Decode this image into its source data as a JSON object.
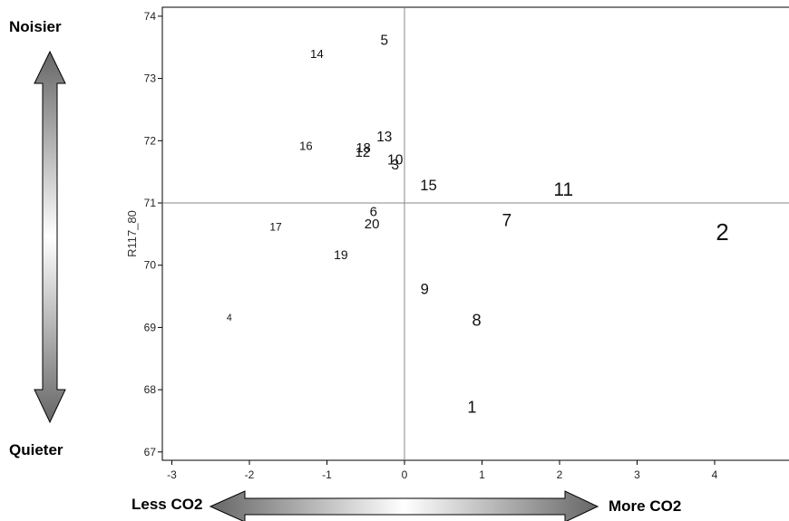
{
  "annotations": {
    "top_label": "Noisier",
    "bottom_label": "Quieter",
    "left_label": "Less CO2",
    "right_label": "More CO2"
  },
  "chart_data": {
    "type": "scatter",
    "title": "",
    "xlabel": "",
    "ylabel": "R117_80",
    "xlim": [
      -3,
      5
    ],
    "ylim": [
      67,
      74
    ],
    "x_ticks": [
      -3,
      -2,
      -1,
      0,
      1,
      2,
      3,
      4
    ],
    "y_ticks": [
      67,
      68,
      69,
      70,
      71,
      72,
      73,
      74
    ],
    "reference_lines": {
      "x": 0,
      "y": 71
    },
    "points": [
      {
        "label": "1",
        "x": 0.87,
        "y": 67.7
      },
      {
        "label": "2",
        "x": 4.1,
        "y": 70.5
      },
      {
        "label": "3",
        "x": -0.12,
        "y": 71.6
      },
      {
        "label": "4",
        "x": -2.26,
        "y": 69.15
      },
      {
        "label": "5",
        "x": -0.26,
        "y": 73.6
      },
      {
        "label": "6",
        "x": -0.4,
        "y": 70.85
      },
      {
        "label": "7",
        "x": 1.32,
        "y": 70.7
      },
      {
        "label": "8",
        "x": 0.93,
        "y": 69.1
      },
      {
        "label": "9",
        "x": 0.26,
        "y": 69.6
      },
      {
        "label": "10",
        "x": -0.12,
        "y": 71.68
      },
      {
        "label": "11",
        "x": 2.05,
        "y": 71.2
      },
      {
        "label": "12",
        "x": -0.54,
        "y": 71.8
      },
      {
        "label": "13",
        "x": -0.26,
        "y": 72.05
      },
      {
        "label": "14",
        "x": -1.13,
        "y": 73.38
      },
      {
        "label": "15",
        "x": 0.31,
        "y": 71.27
      },
      {
        "label": "16",
        "x": -1.27,
        "y": 71.9
      },
      {
        "label": "17",
        "x": -1.66,
        "y": 70.6
      },
      {
        "label": "18",
        "x": -0.53,
        "y": 71.87
      },
      {
        "label": "19",
        "x": -0.82,
        "y": 70.15
      },
      {
        "label": "20",
        "x": -0.42,
        "y": 70.65
      }
    ]
  }
}
